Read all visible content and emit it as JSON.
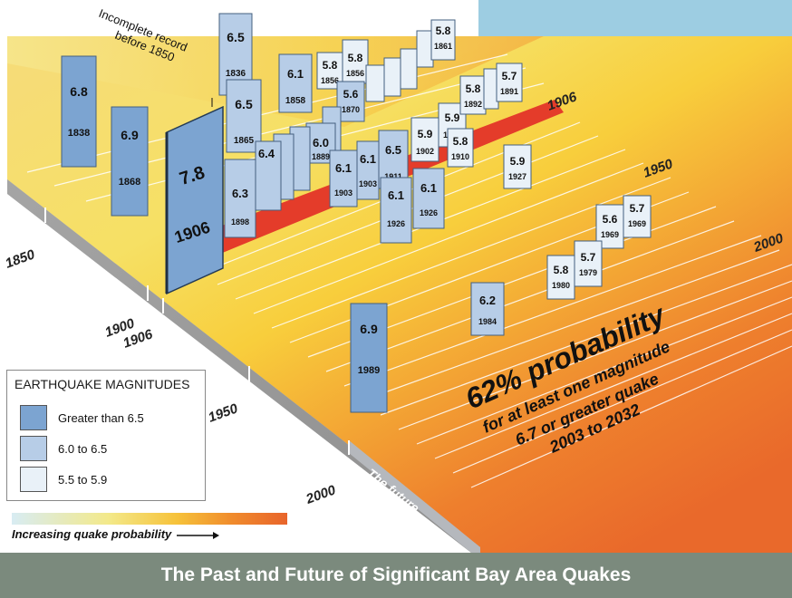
{
  "title": "The Past and Future of Significant Bay Area Quakes",
  "incomplete_note": [
    "Incomplete record",
    "before 1850"
  ],
  "years": {
    "top": [
      "1906",
      "1950",
      "2000"
    ],
    "side": [
      "1850",
      "1900",
      "1906",
      "1950",
      "2000"
    ]
  },
  "future_label": "The future",
  "probability": {
    "headline": "62% probability",
    "line1": "for at least one magnitude",
    "line2": "6.7 or greater quake",
    "line3": "2003 to 2032"
  },
  "legend": {
    "title": "EARTHQUAKE MAGNITUDES",
    "items": [
      {
        "label": "Greater than 6.5",
        "color": "#7ca4d1"
      },
      {
        "label": "6.0 to 6.5",
        "color": "#b7cde7"
      },
      {
        "label": "5.5 to 5.9",
        "color": "#e9f1f8"
      }
    ]
  },
  "probability_scale_label": "Increasing quake probability",
  "colors": {
    "light_blue_box": "#9dcde2",
    "footer": "#7b8a7d"
  },
  "quakes": [
    {
      "mag": "6.8",
      "year": "1838"
    },
    {
      "mag": "6.5",
      "year": "1836"
    },
    {
      "mag": "6.9",
      "year": "1868"
    },
    {
      "mag": "6.5",
      "year": "1865"
    },
    {
      "mag": "7.8",
      "year": "1906"
    },
    {
      "mag": "6.1",
      "year": "1858"
    },
    {
      "mag": "5.8",
      "year": "1856"
    },
    {
      "mag": "5.8",
      "year": "1856"
    },
    {
      "mag": "5.6",
      "year": "1870"
    },
    {
      "mag": "6.0",
      "year": "1889"
    },
    {
      "mag": "6.3",
      "year": "1898"
    },
    {
      "mag": "6.4",
      "year": ""
    },
    {
      "mag": "6.1",
      "year": "1903"
    },
    {
      "mag": "6.1",
      "year": "1903"
    },
    {
      "mag": "6.5",
      "year": "1911"
    },
    {
      "mag": "5.9",
      "year": "1902"
    },
    {
      "mag": "5.9",
      "year": "1899"
    },
    {
      "mag": "5.8",
      "year": "1892"
    },
    {
      "mag": "5.7",
      "year": "1891"
    },
    {
      "mag": "5.8",
      "year": "1910"
    },
    {
      "mag": "5.9",
      "year": "1927"
    },
    {
      "mag": "6.1",
      "year": "1926"
    },
    {
      "mag": "6.1",
      "year": "1926"
    },
    {
      "mag": "5.6",
      "year": "1969"
    },
    {
      "mag": "5.7",
      "year": "1969"
    },
    {
      "mag": "5.8",
      "year": "1980"
    },
    {
      "mag": "5.7",
      "year": "1979"
    },
    {
      "mag": "6.2",
      "year": "1984"
    },
    {
      "mag": "6.9",
      "year": "1989"
    },
    {
      "mag": "5.8",
      "year": "1861"
    }
  ]
}
